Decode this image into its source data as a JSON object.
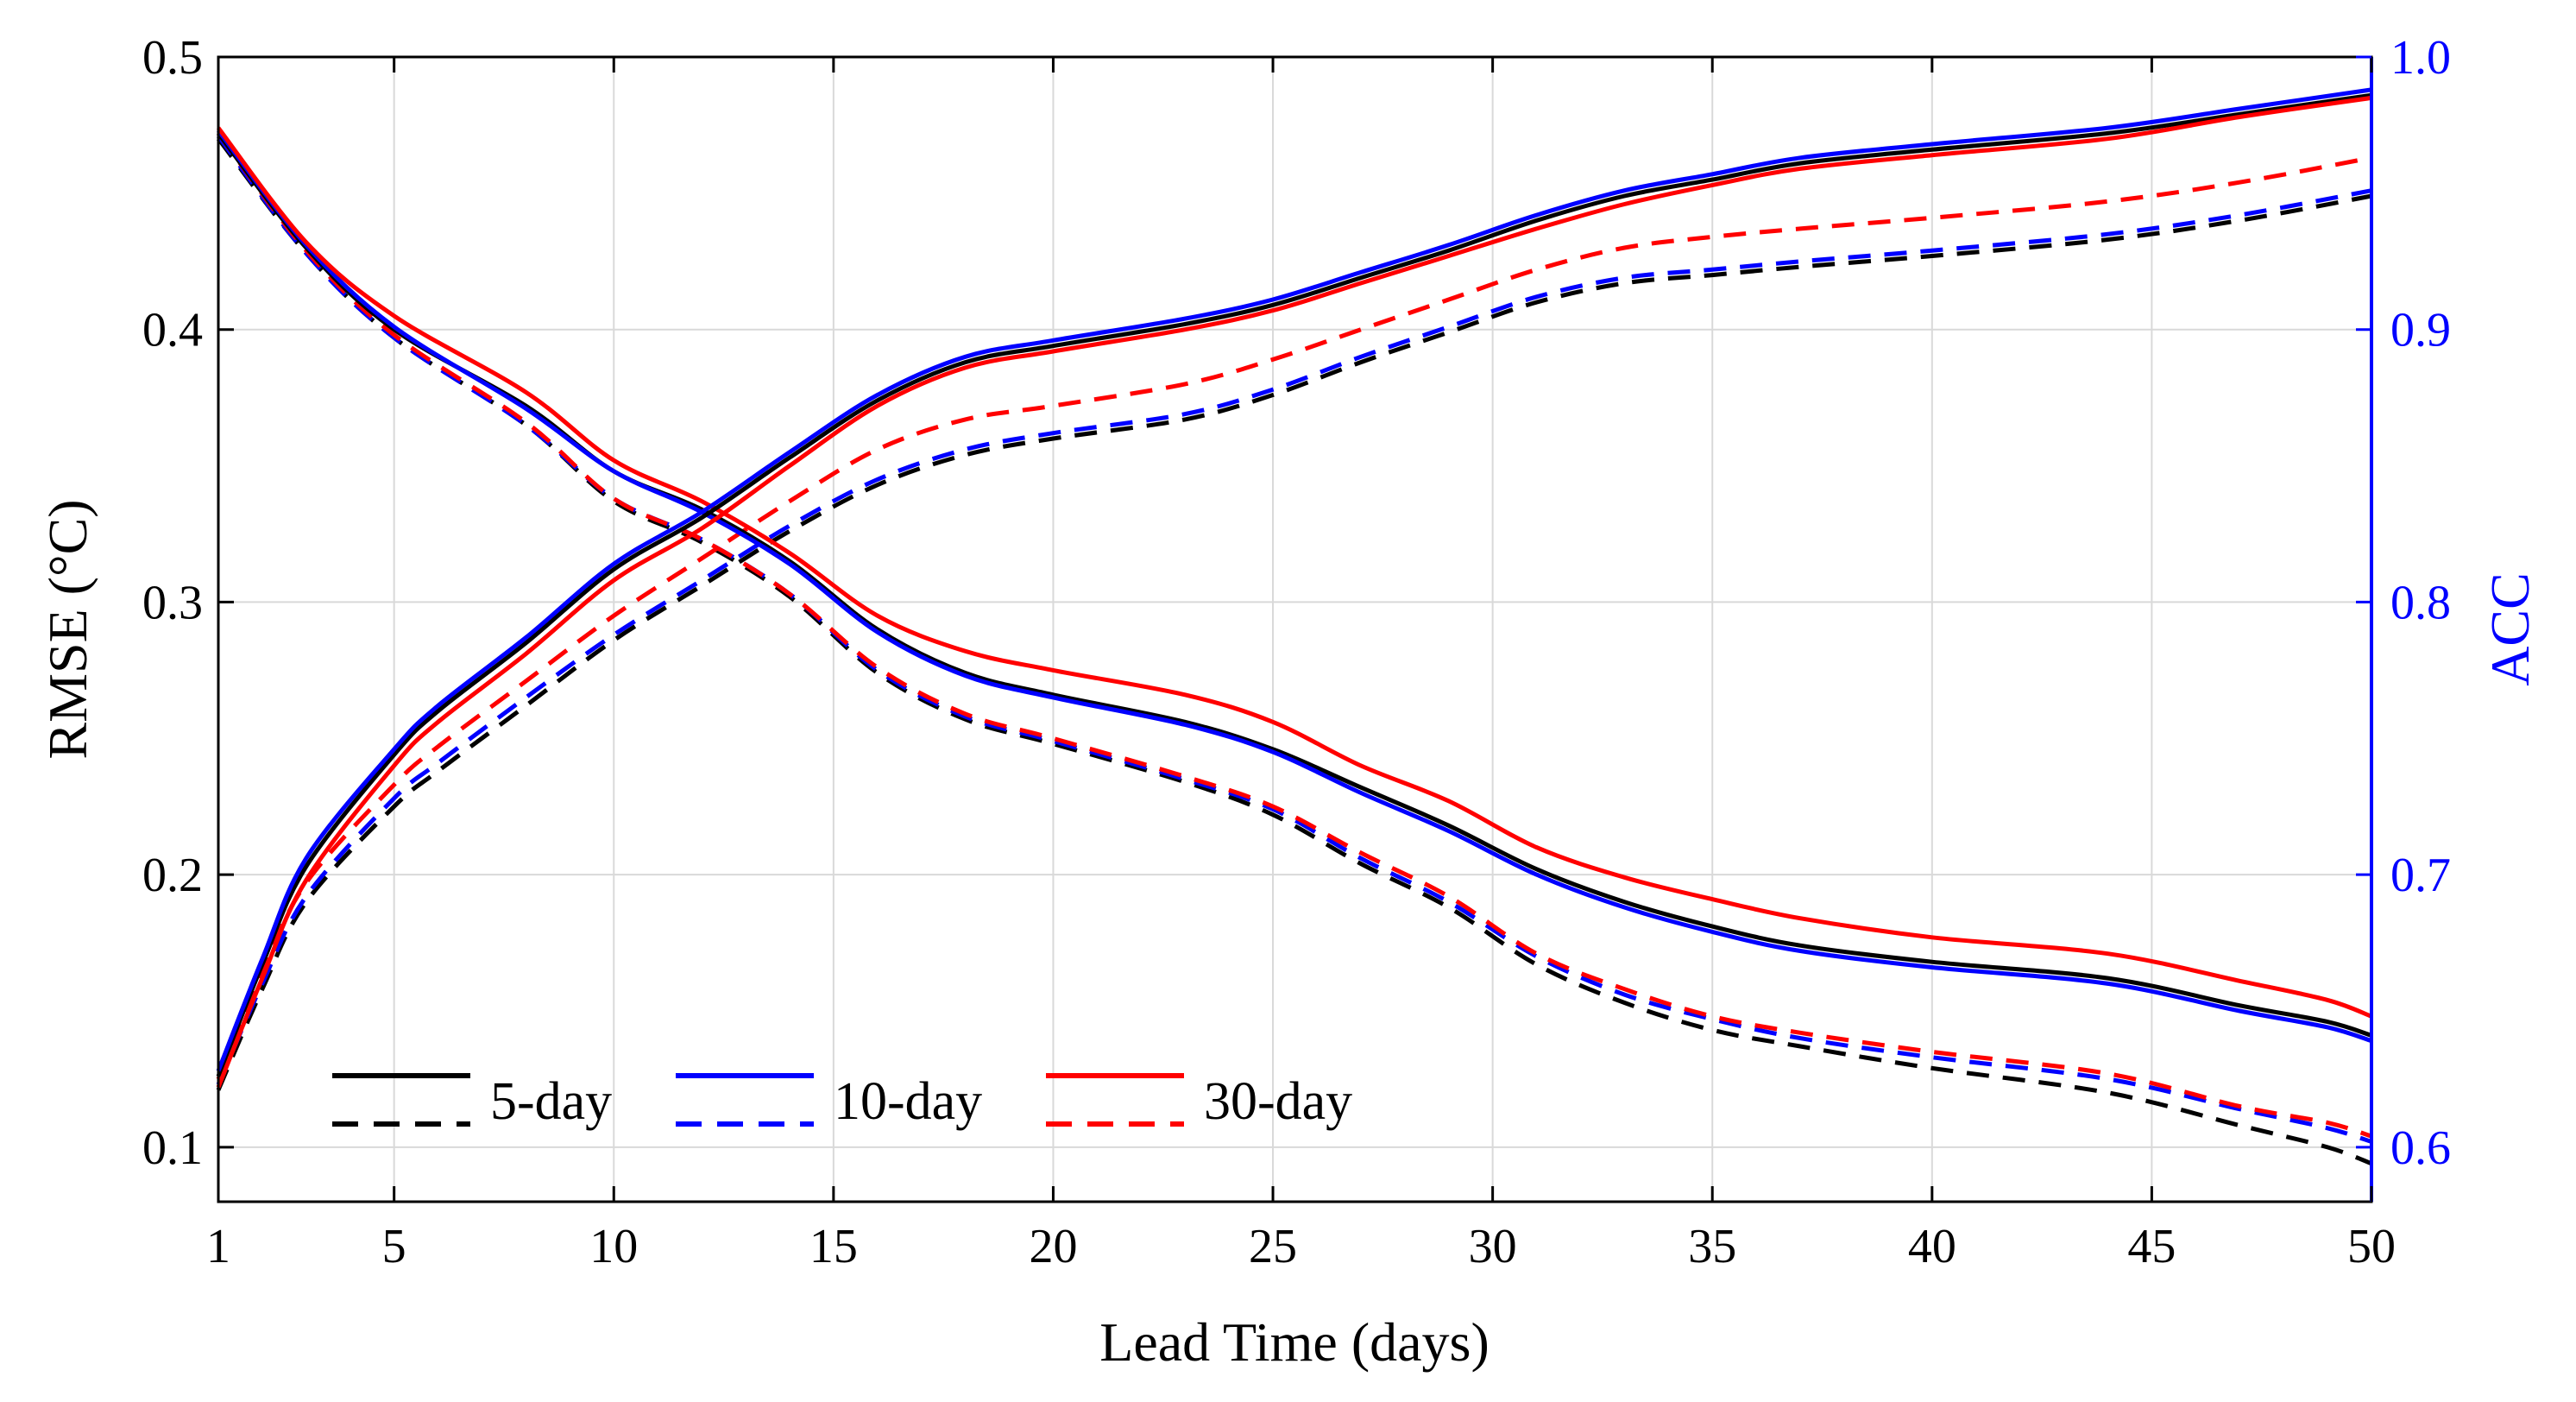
{
  "chart_data": {
    "type": "line",
    "title": "",
    "xlabel": "Lead Time (days)",
    "ylabel_left": "RMSE (°C)",
    "ylabel_right": "ACC",
    "xlim": [
      1,
      50
    ],
    "ylim_left": [
      0.08,
      0.5
    ],
    "ylim_right": [
      0.58,
      1.0
    ],
    "xticks": [
      "1",
      "5",
      "10",
      "15",
      "20",
      "25",
      "30",
      "35",
      "40",
      "45",
      "50"
    ],
    "yticks_left": [
      "0.1",
      "0.2",
      "0.3",
      "0.4",
      "0.5"
    ],
    "yticks_right": [
      "0.6",
      "0.7",
      "0.8",
      "0.9",
      "1.0"
    ],
    "grid": true,
    "colors": {
      "5-day": "#000000",
      "10-day": "#0000ff",
      "30-day": "#ff0000",
      "right_axis": "#0000ff"
    },
    "legend": {
      "placement": "bottom-left",
      "entries": [
        "5-day",
        "10-day",
        "30-day"
      ]
    },
    "series": [
      {
        "name": "5-day RMSE (solid)",
        "color": "#000000",
        "dash": false,
        "axis": "left",
        "x": [
          1,
          3,
          5,
          8,
          10,
          12,
          14,
          16,
          18,
          20,
          23,
          25,
          27,
          29,
          31,
          33,
          35,
          37,
          40,
          44,
          47,
          49,
          50
        ],
        "y": [
          0.472,
          0.43,
          0.4,
          0.372,
          0.348,
          0.334,
          0.315,
          0.29,
          0.274,
          0.266,
          0.256,
          0.246,
          0.232,
          0.218,
          0.202,
          0.19,
          0.181,
          0.174,
          0.168,
          0.162,
          0.152,
          0.146,
          0.141
        ]
      },
      {
        "name": "10-day RMSE (solid)",
        "color": "#0000ff",
        "dash": false,
        "axis": "left",
        "x": [
          1,
          3,
          5,
          8,
          10,
          12,
          14,
          16,
          18,
          20,
          23,
          25,
          27,
          29,
          31,
          33,
          35,
          37,
          40,
          44,
          47,
          49,
          50
        ],
        "y": [
          0.473,
          0.431,
          0.401,
          0.371,
          0.348,
          0.333,
          0.314,
          0.289,
          0.273,
          0.265,
          0.255,
          0.245,
          0.23,
          0.216,
          0.2,
          0.188,
          0.179,
          0.172,
          0.166,
          0.16,
          0.15,
          0.144,
          0.139
        ]
      },
      {
        "name": "30-day RMSE (solid)",
        "color": "#ff0000",
        "dash": false,
        "axis": "left",
        "x": [
          1,
          3,
          5,
          8,
          10,
          12,
          14,
          16,
          18,
          20,
          23,
          25,
          27,
          29,
          31,
          33,
          35,
          37,
          40,
          44,
          47,
          49,
          50
        ],
        "y": [
          0.474,
          0.432,
          0.405,
          0.377,
          0.352,
          0.337,
          0.318,
          0.295,
          0.282,
          0.275,
          0.266,
          0.256,
          0.24,
          0.227,
          0.21,
          0.199,
          0.191,
          0.184,
          0.177,
          0.171,
          0.161,
          0.154,
          0.148
        ]
      },
      {
        "name": "5-day RMSE (dashed)",
        "color": "#000000",
        "dash": true,
        "axis": "left",
        "x": [
          1,
          3,
          5,
          8,
          10,
          12,
          14,
          16,
          18,
          20,
          23,
          25,
          27,
          29,
          31,
          33,
          35,
          37,
          40,
          44,
          47,
          49,
          50
        ],
        "y": [
          0.47,
          0.428,
          0.397,
          0.365,
          0.337,
          0.322,
          0.302,
          0.274,
          0.257,
          0.248,
          0.234,
          0.222,
          0.204,
          0.188,
          0.167,
          0.153,
          0.143,
          0.137,
          0.129,
          0.12,
          0.108,
          0.1,
          0.094
        ]
      },
      {
        "name": "10-day RMSE (dashed)",
        "color": "#0000ff",
        "dash": true,
        "axis": "left",
        "x": [
          1,
          3,
          5,
          8,
          10,
          12,
          14,
          16,
          18,
          20,
          23,
          25,
          27,
          29,
          31,
          33,
          35,
          37,
          40,
          44,
          47,
          49,
          50
        ],
        "y": [
          0.471,
          0.428,
          0.397,
          0.365,
          0.338,
          0.323,
          0.303,
          0.275,
          0.258,
          0.249,
          0.235,
          0.224,
          0.206,
          0.19,
          0.17,
          0.156,
          0.147,
          0.14,
          0.133,
          0.125,
          0.114,
          0.107,
          0.102
        ]
      },
      {
        "name": "30-day RMSE (dashed)",
        "color": "#ff0000",
        "dash": true,
        "axis": "left",
        "x": [
          1,
          3,
          5,
          8,
          10,
          12,
          14,
          16,
          18,
          20,
          23,
          25,
          27,
          29,
          31,
          33,
          35,
          37,
          40,
          44,
          47,
          49,
          50
        ],
        "y": [
          0.472,
          0.429,
          0.398,
          0.366,
          0.338,
          0.323,
          0.303,
          0.276,
          0.259,
          0.25,
          0.236,
          0.225,
          0.208,
          0.192,
          0.171,
          0.158,
          0.148,
          0.142,
          0.135,
          0.127,
          0.115,
          0.109,
          0.104
        ]
      },
      {
        "name": "5-day ACC (solid)",
        "color": "#000000",
        "dash": false,
        "axis": "right",
        "x": [
          1,
          2,
          3,
          5,
          6,
          8,
          10,
          12,
          14,
          16,
          18,
          20,
          23,
          25,
          27,
          29,
          31,
          33,
          35,
          37,
          40,
          44,
          47,
          50
        ],
        "y": [
          0.626,
          0.667,
          0.703,
          0.744,
          0.76,
          0.785,
          0.812,
          0.831,
          0.853,
          0.874,
          0.888,
          0.894,
          0.902,
          0.909,
          0.919,
          0.929,
          0.94,
          0.949,
          0.955,
          0.961,
          0.966,
          0.972,
          0.979,
          0.986
        ]
      },
      {
        "name": "10-day ACC (solid)",
        "color": "#0000ff",
        "dash": false,
        "axis": "right",
        "x": [
          1,
          2,
          3,
          5,
          6,
          8,
          10,
          12,
          14,
          16,
          18,
          20,
          23,
          25,
          27,
          29,
          31,
          33,
          35,
          37,
          40,
          44,
          47,
          50
        ],
        "y": [
          0.628,
          0.669,
          0.706,
          0.746,
          0.762,
          0.787,
          0.814,
          0.833,
          0.855,
          0.876,
          0.89,
          0.896,
          0.904,
          0.911,
          0.921,
          0.931,
          0.942,
          0.951,
          0.957,
          0.963,
          0.968,
          0.974,
          0.981,
          0.988
        ]
      },
      {
        "name": "30-day ACC (solid)",
        "color": "#ff0000",
        "dash": false,
        "axis": "right",
        "x": [
          1,
          2,
          3,
          5,
          6,
          8,
          10,
          12,
          14,
          16,
          18,
          20,
          23,
          25,
          27,
          29,
          31,
          33,
          35,
          37,
          40,
          44,
          47,
          50
        ],
        "y": [
          0.622,
          0.662,
          0.698,
          0.74,
          0.756,
          0.781,
          0.808,
          0.827,
          0.85,
          0.872,
          0.886,
          0.892,
          0.9,
          0.907,
          0.917,
          0.927,
          0.937,
          0.946,
          0.953,
          0.959,
          0.964,
          0.97,
          0.978,
          0.985
        ]
      },
      {
        "name": "5-day ACC (dashed)",
        "color": "#000000",
        "dash": true,
        "axis": "right",
        "x": [
          1,
          2,
          3,
          5,
          6,
          8,
          10,
          12,
          14,
          16,
          18,
          20,
          23,
          25,
          27,
          29,
          31,
          33,
          35,
          37,
          40,
          44,
          47,
          50
        ],
        "y": [
          0.621,
          0.658,
          0.69,
          0.725,
          0.738,
          0.762,
          0.786,
          0.806,
          0.826,
          0.843,
          0.854,
          0.86,
          0.867,
          0.876,
          0.888,
          0.899,
          0.91,
          0.917,
          0.92,
          0.923,
          0.927,
          0.933,
          0.94,
          0.949
        ]
      },
      {
        "name": "10-day ACC (dashed)",
        "color": "#0000ff",
        "dash": true,
        "axis": "right",
        "x": [
          1,
          2,
          3,
          5,
          6,
          8,
          10,
          12,
          14,
          16,
          18,
          20,
          23,
          25,
          27,
          29,
          31,
          33,
          35,
          37,
          40,
          44,
          47,
          50
        ],
        "y": [
          0.623,
          0.66,
          0.692,
          0.728,
          0.741,
          0.765,
          0.788,
          0.808,
          0.828,
          0.845,
          0.856,
          0.862,
          0.869,
          0.878,
          0.89,
          0.901,
          0.912,
          0.919,
          0.922,
          0.925,
          0.929,
          0.935,
          0.942,
          0.951
        ]
      },
      {
        "name": "30-day ACC (dashed)",
        "color": "#ff0000",
        "dash": true,
        "axis": "right",
        "x": [
          1,
          2,
          3,
          5,
          6,
          8,
          10,
          12,
          14,
          16,
          18,
          20,
          23,
          25,
          27,
          29,
          31,
          33,
          35,
          37,
          40,
          44,
          47,
          50
        ],
        "y": [
          0.625,
          0.664,
          0.697,
          0.733,
          0.747,
          0.771,
          0.795,
          0.816,
          0.837,
          0.856,
          0.867,
          0.872,
          0.88,
          0.889,
          0.9,
          0.911,
          0.922,
          0.93,
          0.934,
          0.937,
          0.941,
          0.947,
          0.954,
          0.963
        ]
      }
    ]
  }
}
